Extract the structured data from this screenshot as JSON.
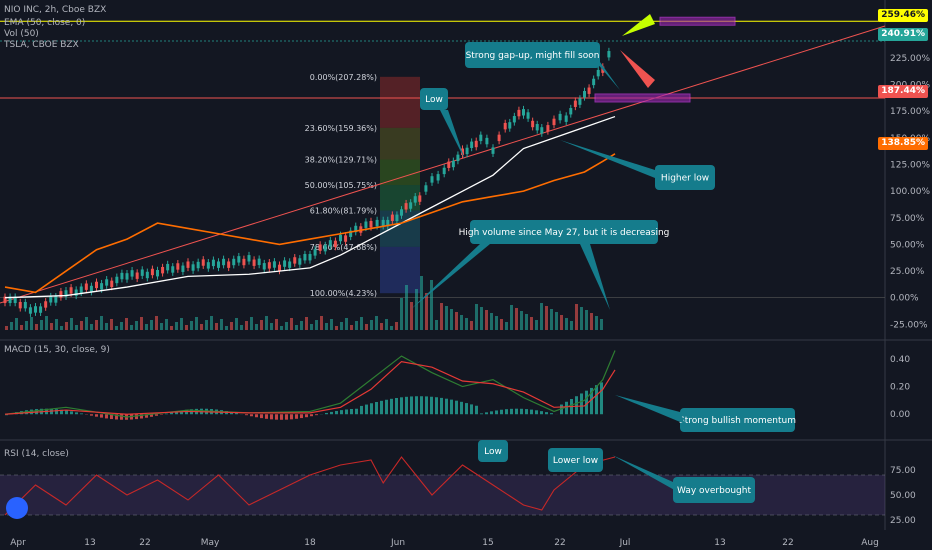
{
  "legend": {
    "symbol": "NIO INC, 2h, Cboe BZX",
    "ema": "EMA (50, close, 0)",
    "vol": "Vol (50)",
    "tsla": "TSLA, CBOE BZX",
    "macd": "MACD (15, 30, close, 9)",
    "rsi": "RSI (14, close)"
  },
  "badges": {
    "b1": "259.46%",
    "b2": "240.91%",
    "b3": "187.44%",
    "b4": "138.85%"
  },
  "colors": {
    "bg": "#131722",
    "up": "#26a69a",
    "down": "#ef5350",
    "ema": "#ffffff",
    "tsla": "#ff6d00",
    "macd": "#2e7d32",
    "signal": "#e53935",
    "rsi": "#c62828",
    "callout": "#157c8c",
    "yellow": "#ffff00",
    "purple": "#9c27b0"
  },
  "chart_data": [
    {
      "type": "line",
      "panel": "price",
      "y_axis_unit": "%",
      "y_ticks": [
        "225.00%",
        "200.00%",
        "175.00%",
        "150.00%",
        "125.00%",
        "100.00%",
        "75.00%",
        "50.00%",
        "25.00%",
        "0.00%",
        "-25.00%"
      ],
      "ylim": [
        -35,
        270
      ],
      "x_ticks": [
        "Apr",
        "13",
        "22",
        "May",
        "18",
        "Jun",
        "15",
        "22",
        "Jul",
        "13",
        "22",
        "Aug"
      ],
      "series": [
        {
          "name": "NIO INC",
          "x": [
            0,
            5,
            10,
            15,
            20,
            25,
            30,
            35,
            40,
            45,
            50,
            55,
            60,
            62,
            65,
            68,
            70,
            72,
            75,
            78,
            80,
            82,
            85,
            88,
            90,
            92,
            95,
            98,
            100
          ],
          "values": [
            0,
            -12,
            5,
            10,
            20,
            25,
            30,
            32,
            35,
            28,
            40,
            55,
            70,
            68,
            80,
            95,
            110,
            120,
            135,
            150,
            140,
            160,
            175,
            155,
            165,
            170,
            190,
            215,
            240
          ]
        },
        {
          "name": "EMA (50, close, 0)",
          "x": [
            0,
            10,
            20,
            30,
            40,
            50,
            55,
            60,
            65,
            70,
            75,
            80,
            85,
            90,
            95,
            100
          ],
          "values": [
            0,
            2,
            10,
            20,
            22,
            28,
            40,
            55,
            70,
            85,
            100,
            115,
            140,
            150,
            160,
            170
          ]
        },
        {
          "name": "TSLA",
          "x": [
            0,
            5,
            10,
            15,
            20,
            25,
            30,
            35,
            40,
            45,
            50,
            55,
            60,
            65,
            70,
            75,
            80,
            85,
            90,
            95,
            98,
            100
          ],
          "values": [
            10,
            5,
            25,
            45,
            55,
            70,
            65,
            60,
            55,
            50,
            55,
            60,
            65,
            70,
            80,
            90,
            95,
            100,
            110,
            118,
            128,
            135
          ]
        }
      ],
      "annotations": [
        "Low",
        "Strong gap-up, might fill soon",
        "Higher low",
        "High volume since May 27, but it is decreasing"
      ],
      "fibonacci": [
        "0.00%(207.28%)",
        "23.60%(159.36%)",
        "38.20%(129.71%)",
        "50.00%(105.75%)",
        "61.80%(81.79%)",
        "78.60%(47.68%)",
        "100.00%(4.23%)"
      ]
    },
    {
      "type": "bar",
      "panel": "macd",
      "y_ticks": [
        "0.40",
        "0.20",
        "0.00"
      ],
      "ylim": [
        -0.15,
        0.5
      ],
      "annotations": [
        "Strong bullish momentum"
      ],
      "series": [
        {
          "name": "MACD",
          "x": [
            0,
            10,
            20,
            30,
            40,
            50,
            55,
            60,
            65,
            70,
            75,
            80,
            85,
            90,
            95,
            98,
            100
          ],
          "values": [
            0.0,
            0.05,
            -0.02,
            0.03,
            0.01,
            0.02,
            0.08,
            0.25,
            0.42,
            0.3,
            0.2,
            0.25,
            0.12,
            0.02,
            0.1,
            0.25,
            0.46
          ]
        },
        {
          "name": "Signal",
          "x": [
            0,
            10,
            20,
            30,
            40,
            50,
            55,
            60,
            65,
            70,
            75,
            80,
            85,
            90,
            95,
            98,
            100
          ],
          "values": [
            0.0,
            0.03,
            0.0,
            0.02,
            0.01,
            0.01,
            0.05,
            0.18,
            0.38,
            0.34,
            0.24,
            0.22,
            0.16,
            0.05,
            0.06,
            0.18,
            0.32
          ]
        }
      ]
    },
    {
      "type": "line",
      "panel": "rsi",
      "y_ticks": [
        "75.00",
        "50.00",
        "25.00"
      ],
      "ylim": [
        20,
        100
      ],
      "annotations": [
        "Low",
        "Lower low",
        "Way overbought"
      ],
      "series": [
        {
          "name": "RSI (14, close)",
          "x": [
            0,
            5,
            10,
            15,
            20,
            25,
            30,
            35,
            40,
            45,
            50,
            55,
            60,
            62,
            65,
            70,
            75,
            80,
            85,
            88,
            90,
            95,
            100
          ],
          "values": [
            30,
            60,
            40,
            70,
            50,
            65,
            45,
            70,
            40,
            55,
            70,
            80,
            85,
            62,
            88,
            50,
            80,
            60,
            40,
            35,
            55,
            80,
            88
          ]
        }
      ]
    }
  ]
}
